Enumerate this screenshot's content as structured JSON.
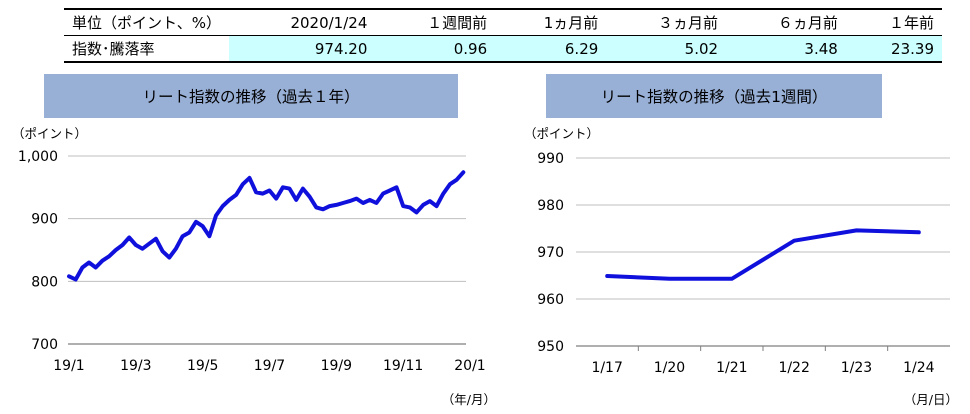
{
  "table": {
    "header": [
      "単位（ポイント、%）",
      "2020/1/24",
      "１週間前",
      "1ヵ月前",
      "３ヵ月前",
      "６ヵ月前",
      "１年前"
    ],
    "row": [
      "指数･騰落率",
      "974.20",
      "0.96",
      "6.29",
      "5.02",
      "3.48",
      "23.39"
    ]
  },
  "chart_data": [
    {
      "type": "line",
      "title": "リート指数の推移（過去１年）",
      "ylabel": "（ポイント）",
      "xlabel": "（年/月）",
      "ylim": [
        700,
        1000
      ],
      "yticks": [
        "700",
        "800",
        "900",
        "1,000"
      ],
      "xlim": [
        0,
        12
      ],
      "xticks": [
        "19/1",
        "19/3",
        "19/5",
        "19/7",
        "19/9",
        "19/11",
        "20/1"
      ],
      "grid": true,
      "series": [
        {
          "color": "#1010dd",
          "x": [
            0,
            0.2,
            0.4,
            0.6,
            0.8,
            1.0,
            1.2,
            1.4,
            1.6,
            1.8,
            2.0,
            2.2,
            2.4,
            2.6,
            2.8,
            3.0,
            3.2,
            3.4,
            3.6,
            3.8,
            4.0,
            4.2,
            4.4,
            4.6,
            4.8,
            5.0,
            5.2,
            5.4,
            5.6,
            5.8,
            6.0,
            6.2,
            6.4,
            6.6,
            6.8,
            7.0,
            7.2,
            7.4,
            7.6,
            7.8,
            8.0,
            8.2,
            8.4,
            8.6,
            8.8,
            9.0,
            9.2,
            9.4,
            9.6,
            9.8,
            10.0,
            10.2,
            10.4,
            10.6,
            10.8,
            11.0,
            11.2,
            11.4,
            11.6,
            11.8
          ],
          "y": [
            808,
            803,
            822,
            830,
            822,
            833,
            840,
            850,
            858,
            870,
            858,
            852,
            860,
            868,
            848,
            838,
            852,
            872,
            878,
            895,
            888,
            872,
            905,
            920,
            930,
            938,
            955,
            965,
            942,
            940,
            945,
            932,
            950,
            948,
            930,
            948,
            935,
            918,
            915,
            920,
            922,
            925,
            928,
            932,
            925,
            930,
            925,
            940,
            945,
            950,
            920,
            918,
            910,
            922,
            928,
            920,
            940,
            955,
            962,
            974
          ]
        }
      ]
    },
    {
      "type": "line",
      "title": "リート指数の推移（過去1週間）",
      "ylabel": "（ポイント）",
      "xlabel": "（月/日）",
      "ylim": [
        950,
        990
      ],
      "yticks": [
        "950",
        "960",
        "970",
        "980",
        "990"
      ],
      "categories": [
        "1/17",
        "1/20",
        "1/21",
        "1/22",
        "1/23",
        "1/24"
      ],
      "grid": true,
      "series": [
        {
          "color": "#1010dd",
          "values": [
            964.9,
            964.3,
            964.3,
            972.4,
            974.6,
            974.2
          ]
        }
      ]
    }
  ]
}
